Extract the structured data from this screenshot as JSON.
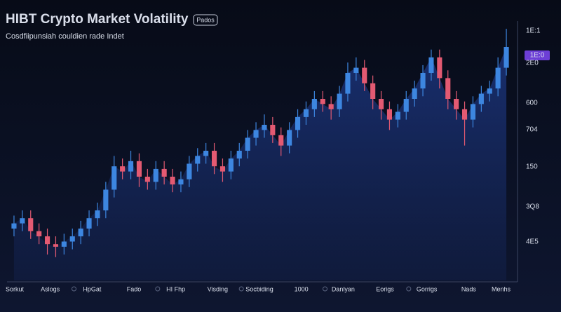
{
  "chart_data": {
    "type": "candlestick",
    "title": "HIBT Crypto Market Volatility",
    "badge": "Pados",
    "subtitle": "Cosdfiipunsiah couldien rade Indet",
    "y_labels": [
      "1E:1",
      "1E:0",
      "2E0",
      "600",
      "704",
      "150",
      "3Q8",
      "4E5"
    ],
    "x_labels": [
      "Sorkut",
      "Aslogs",
      "HpGat",
      "Fado",
      "HI Fhp",
      "Visding",
      "Socbiding",
      "1000",
      "Danlyan",
      "Eorigs",
      "Gorrigs",
      "Nads",
      "Menhs"
    ],
    "ylim": [
      0,
      100
    ],
    "up_color": "#3d86e0",
    "down_color": "#e35a72",
    "area_color": "#1e3a8a",
    "open": [
      20,
      22,
      24,
      19,
      17,
      14,
      13,
      15,
      17,
      20,
      24,
      27,
      35,
      44,
      42,
      46,
      40,
      38,
      43,
      40,
      37,
      39,
      45,
      48,
      50,
      44,
      42,
      47,
      50,
      55,
      58,
      60,
      56,
      52,
      58,
      63,
      66,
      70,
      68,
      66,
      72,
      80,
      82,
      76,
      70,
      66,
      62,
      65,
      70,
      74,
      80,
      86,
      78,
      70,
      66,
      62,
      68,
      72,
      74,
      82
    ],
    "high": [
      25,
      27,
      27,
      22,
      20,
      17,
      18,
      20,
      23,
      27,
      30,
      38,
      48,
      47,
      50,
      49,
      43,
      46,
      46,
      43,
      42,
      48,
      51,
      53,
      53,
      47,
      50,
      53,
      58,
      61,
      64,
      63,
      59,
      61,
      66,
      69,
      73,
      73,
      71,
      75,
      84,
      86,
      85,
      79,
      73,
      69,
      68,
      73,
      77,
      83,
      89,
      89,
      81,
      73,
      69,
      71,
      75,
      77,
      86,
      97
    ],
    "low": [
      17,
      19,
      16,
      14,
      10,
      9,
      10,
      12,
      14,
      17,
      21,
      24,
      32,
      39,
      39,
      36,
      35,
      35,
      37,
      34,
      34,
      36,
      42,
      45,
      41,
      38,
      39,
      44,
      47,
      52,
      55,
      53,
      48,
      49,
      55,
      60,
      63,
      65,
      62,
      63,
      69,
      77,
      73,
      66,
      62,
      58,
      59,
      62,
      67,
      71,
      77,
      74,
      66,
      62,
      52,
      59,
      65,
      69,
      71,
      79
    ],
    "close": [
      22,
      24,
      19,
      17,
      14,
      13,
      15,
      17,
      20,
      24,
      27,
      35,
      44,
      42,
      46,
      40,
      38,
      43,
      40,
      37,
      39,
      45,
      48,
      50,
      44,
      42,
      47,
      50,
      55,
      58,
      60,
      56,
      52,
      58,
      63,
      66,
      70,
      68,
      66,
      72,
      80,
      82,
      76,
      70,
      66,
      62,
      65,
      70,
      74,
      80,
      86,
      78,
      70,
      66,
      62,
      68,
      72,
      74,
      82,
      90
    ]
  }
}
